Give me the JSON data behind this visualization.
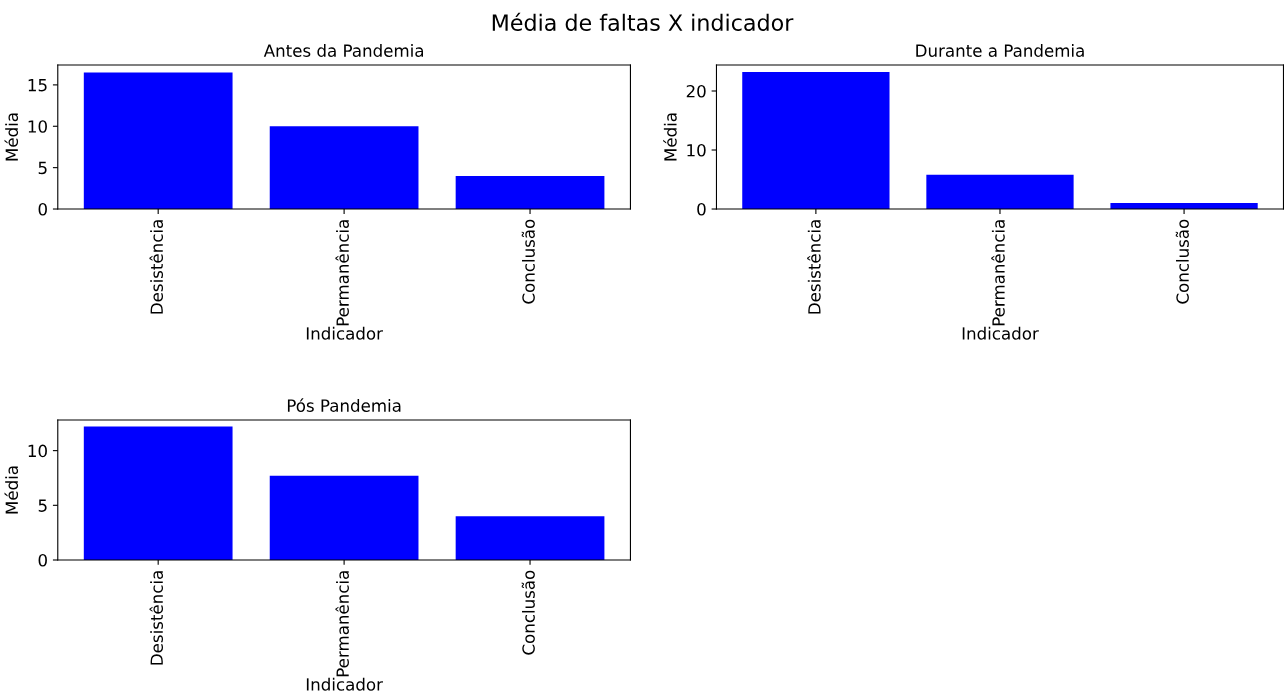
{
  "chart_data": [
    {
      "type": "bar",
      "title": "Antes da Pandemia",
      "annotations": [
        "Média de faltas X indicador"
      ],
      "xlabel": "Indicador",
      "ylabel": "Média",
      "categories": [
        "Desistência",
        "Permanência",
        "Conclusão"
      ],
      "values": [
        16.5,
        10.0,
        4.0
      ],
      "color": "#0000ff",
      "ylim": [
        0,
        17.4
      ],
      "yticks": [
        0,
        5,
        10,
        15
      ],
      "grid": false,
      "legend": false
    },
    {
      "type": "bar",
      "title": "Durante a Pandemia",
      "xlabel": "Indicador",
      "ylabel": "Média",
      "categories": [
        "Desistência",
        "Permanência",
        "Conclusão"
      ],
      "values": [
        23.2,
        5.8,
        1.0
      ],
      "color": "#0000ff",
      "ylim": [
        0,
        24.4
      ],
      "yticks": [
        0,
        10,
        20
      ],
      "grid": false,
      "legend": false
    },
    {
      "type": "bar",
      "title": "Pós Pandemia",
      "xlabel": "Indicador",
      "ylabel": "Média",
      "categories": [
        "Desistência",
        "Permanência",
        "Conclusão"
      ],
      "values": [
        12.2,
        7.7,
        4.0
      ],
      "color": "#0000ff",
      "ylim": [
        0,
        12.8
      ],
      "yticks": [
        0,
        5,
        10
      ],
      "grid": false,
      "legend": false
    }
  ]
}
